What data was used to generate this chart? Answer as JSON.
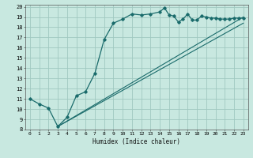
{
  "xlabel": "Humidex (Indice chaleur)",
  "bg_color": "#c8e8e0",
  "line_color": "#1a6b6b",
  "grid_color": "#a0c8c0",
  "xlim": [
    -0.5,
    23.5
  ],
  "ylim": [
    8,
    20.2
  ],
  "xticks": [
    0,
    1,
    2,
    3,
    4,
    5,
    6,
    7,
    8,
    9,
    10,
    11,
    12,
    13,
    14,
    15,
    16,
    17,
    18,
    19,
    20,
    21,
    22,
    23
  ],
  "yticks": [
    8,
    9,
    10,
    11,
    12,
    13,
    14,
    15,
    16,
    17,
    18,
    19,
    20
  ],
  "main_x": [
    0,
    1,
    2,
    3,
    4,
    5,
    6,
    7,
    8,
    9,
    10,
    11,
    12,
    13,
    14,
    14.5,
    15,
    15.5,
    16,
    16.5,
    17,
    17.5,
    18,
    18.5,
    19,
    19.5,
    20,
    20.5,
    21,
    21.5,
    22,
    22.5,
    23
  ],
  "main_y": [
    11.0,
    10.5,
    10.1,
    8.3,
    9.2,
    11.3,
    11.7,
    13.5,
    16.8,
    18.4,
    18.8,
    19.3,
    19.2,
    19.3,
    19.5,
    19.9,
    19.2,
    19.1,
    18.5,
    18.8,
    19.3,
    18.7,
    18.7,
    19.1,
    19.0,
    18.9,
    18.9,
    18.8,
    18.8,
    18.8,
    18.9,
    18.9,
    18.9
  ],
  "line1_x": [
    3,
    23
  ],
  "line1_y": [
    8.3,
    19.0
  ],
  "line2_x": [
    3,
    23
  ],
  "line2_y": [
    8.3,
    18.4
  ]
}
